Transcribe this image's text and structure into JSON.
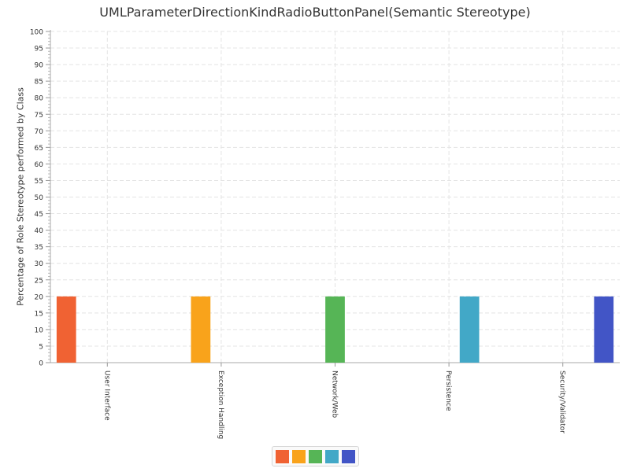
{
  "chart_data": {
    "type": "bar",
    "title": "UMLParameterDirectionKindRadioButtonPanel(Semantic Stereotype)",
    "ylabel": "Percentage of Role Stereotype performed by Class",
    "xlabel": "",
    "ylim": [
      0,
      100
    ],
    "y_ticks": [
      0,
      5,
      10,
      15,
      20,
      25,
      30,
      35,
      40,
      45,
      50,
      55,
      60,
      65,
      70,
      75,
      80,
      85,
      90,
      95,
      100
    ],
    "categories": [
      "User Interface",
      "Exception Handling",
      "Network/Web",
      "Persistence",
      "Security/Validator"
    ],
    "series": [
      {
        "values": [
          20,
          0,
          0,
          0,
          0
        ],
        "color": "#f06233"
      },
      {
        "values": [
          0,
          20,
          0,
          0,
          0
        ],
        "color": "#f9a31b"
      },
      {
        "values": [
          0,
          0,
          20,
          0,
          0
        ],
        "color": "#56b556"
      },
      {
        "values": [
          0,
          0,
          0,
          20,
          0
        ],
        "color": "#42a8c7"
      },
      {
        "values": [
          0,
          0,
          0,
          0,
          20
        ],
        "color": "#4255c6"
      }
    ],
    "grid": true,
    "legend_position": "bottom"
  }
}
